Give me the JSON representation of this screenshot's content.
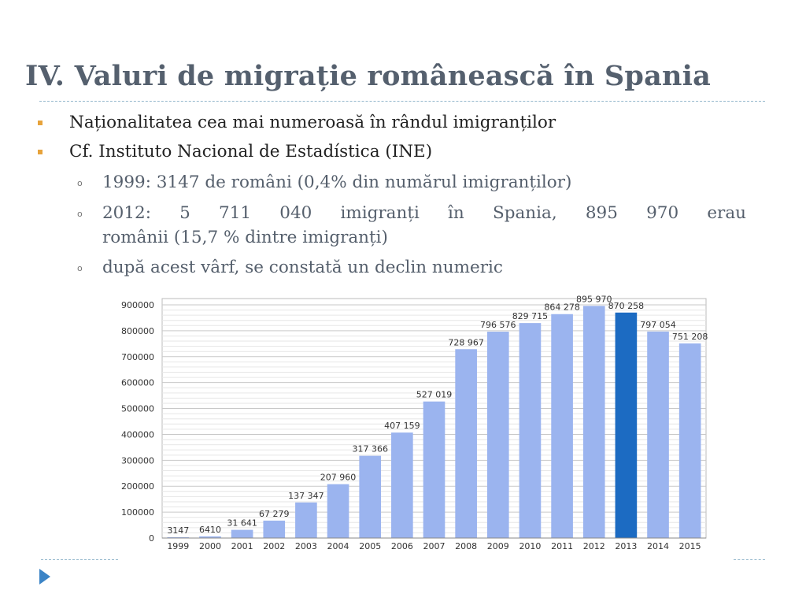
{
  "title": "IV. Valuri de migrație românească în Spania",
  "bullets": [
    "Naționalitatea cea mai numeroasă în rândul imigranților",
    "Cf. Instituto Nacional de Estadística (INE)"
  ],
  "sub_bullets": [
    "1999: 3147 de români (0,4% din numărul imigranților)",
    "2012: 5 711 040 imigranți în Spania, 895 970 erau",
    "românii (15,7 % dintre imigranți)",
    "după acest vârf, se constată un declin numeric"
  ],
  "colors": {
    "bar": "#9bb4ef",
    "bar_highlight": "#1c6bc2",
    "title": "#55606e",
    "bullet_marker": "#e7a33b"
  },
  "chart_data": {
    "type": "bar",
    "categories": [
      "1999",
      "2000",
      "2001",
      "2002",
      "2003",
      "2004",
      "2005",
      "2006",
      "2007",
      "2008",
      "2009",
      "2010",
      "2011",
      "2012",
      "2013",
      "2014",
      "2015"
    ],
    "values": [
      3147,
      6410,
      31641,
      67279,
      137347,
      207960,
      317366,
      407159,
      527019,
      728967,
      796576,
      829715,
      864278,
      895970,
      870258,
      797054,
      751208
    ],
    "data_labels": [
      "3147",
      "6410",
      "31 641",
      "67 279",
      "137 347",
      "207 960",
      "317 366",
      "407 159",
      "527 019",
      "728 967",
      "796 576",
      "829 715",
      "864 278",
      "895 970",
      "870 258",
      "797 054",
      "751 208"
    ],
    "highlight_category": "2013",
    "ylim": [
      0,
      900000
    ],
    "yticks": [
      "0",
      "100000",
      "200000",
      "300000",
      "400000",
      "500000",
      "600000",
      "700000",
      "800000",
      "900000"
    ],
    "ytick_values": [
      0,
      100000,
      200000,
      300000,
      400000,
      500000,
      600000,
      700000,
      800000,
      900000
    ],
    "grid": true,
    "title": "",
    "xlabel": "",
    "ylabel": ""
  }
}
